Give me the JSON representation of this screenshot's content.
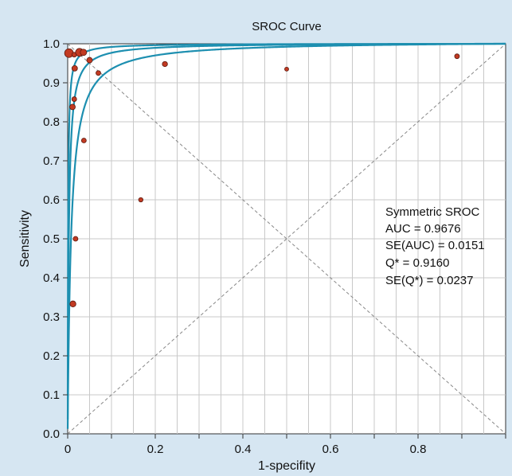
{
  "chart_data": {
    "type": "scatter",
    "title": "SROC Curve",
    "xlabel": "1-specifity",
    "ylabel": "Sensitivity",
    "xlim": [
      0,
      1
    ],
    "ylim": [
      0,
      1
    ],
    "x_ticks": [
      0,
      0.2,
      0.4,
      0.6,
      0.8
    ],
    "x_tick_labels": [
      "0",
      "0.2",
      "0.4",
      "0.6",
      "0.8"
    ],
    "y_ticks": [
      0,
      0.1,
      0.2,
      0.3,
      0.4,
      0.5,
      0.6,
      0.7,
      0.8,
      0.9,
      1.0
    ],
    "y_tick_labels": [
      "0.0",
      "0.1",
      "0.2",
      "0.3",
      "0.4",
      "0.5",
      "0.6",
      "0.7",
      "0.8",
      "0.9",
      "1.0"
    ],
    "grid": true,
    "background_color": "#d6e6f2",
    "plot_background_color": "#ffffff",
    "curve_color": "#1d8fb0",
    "point_color": "#c23a22",
    "reference_lines": [
      "diagonal",
      "anti-diagonal"
    ],
    "curves": [
      {
        "type": "sroc",
        "odds_ratio": 130
      },
      {
        "type": "sroc",
        "odds_ratio": 380
      },
      {
        "type": "sroc",
        "odds_ratio": 1100
      }
    ],
    "points": [
      {
        "x": 0.003,
        "y": 0.976,
        "size": 9
      },
      {
        "x": 0.015,
        "y": 0.972,
        "size": 4
      },
      {
        "x": 0.027,
        "y": 0.978,
        "size": 8
      },
      {
        "x": 0.036,
        "y": 0.978,
        "size": 6
      },
      {
        "x": 0.05,
        "y": 0.958,
        "size": 5
      },
      {
        "x": 0.016,
        "y": 0.937,
        "size": 5
      },
      {
        "x": 0.07,
        "y": 0.925,
        "size": 4
      },
      {
        "x": 0.015,
        "y": 0.858,
        "size": 4
      },
      {
        "x": 0.011,
        "y": 0.838,
        "size": 5
      },
      {
        "x": 0.037,
        "y": 0.752,
        "size": 4
      },
      {
        "x": 0.167,
        "y": 0.6,
        "size": 3.5
      },
      {
        "x": 0.018,
        "y": 0.5,
        "size": 4
      },
      {
        "x": 0.012,
        "y": 0.333,
        "size": 5.5
      },
      {
        "x": 0.222,
        "y": 0.948,
        "size": 4.5
      },
      {
        "x": 0.5,
        "y": 0.935,
        "size": 3
      },
      {
        "x": 0.889,
        "y": 0.968,
        "size": 4
      }
    ],
    "annotation": {
      "lines": [
        "Symmetric SROC",
        "AUC = 0.9676",
        "SE(AUC) = 0.0151",
        "Q* = 0.9160",
        "SE(Q*) = 0.0237"
      ]
    }
  }
}
